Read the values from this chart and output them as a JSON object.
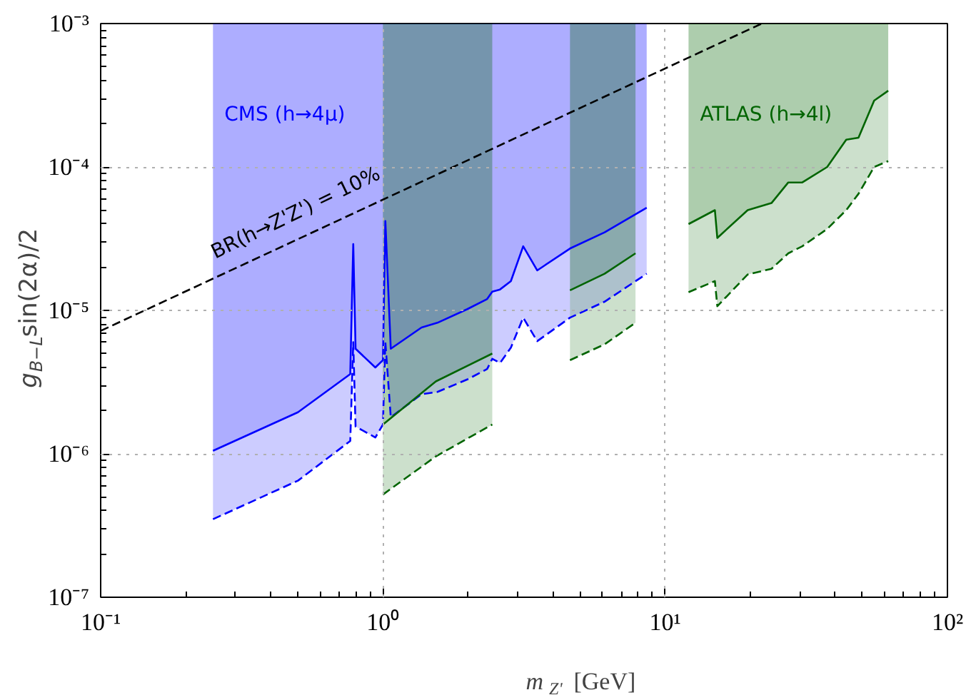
{
  "chart_data": {
    "type": "line",
    "xlabel": "m$_{Z'}$ [GeV]",
    "ylabel": "g$_{B−L}$sin(2α)/2",
    "log": "xy",
    "xlim": [
      0.1,
      100
    ],
    "ylim": [
      1e-07,
      0.001
    ],
    "xticks": [
      {
        "value": 0.1,
        "label": "10⁻¹"
      },
      {
        "value": 1,
        "label": "10⁰"
      },
      {
        "value": 10,
        "label": "10¹"
      },
      {
        "value": 100,
        "label": "10²"
      }
    ],
    "yticks": [
      {
        "value": 1e-07,
        "label": "10⁻⁷"
      },
      {
        "value": 1e-06,
        "label": "10⁻⁶"
      },
      {
        "value": 1e-05,
        "label": "10⁻⁵"
      },
      {
        "value": 0.0001,
        "label": "10⁻⁴"
      },
      {
        "value": 0.001,
        "label": "10⁻³"
      }
    ],
    "grid": true,
    "series": [
      {
        "name": "CMS (h→4μ)",
        "color": "#0000ff",
        "line_style": "solid",
        "x": [
          0.25,
          0.5,
          0.766,
          0.785,
          0.8,
          0.94,
          1.0,
          1.02,
          1.066,
          1.37,
          1.56,
          1.99,
          2.34,
          2.44,
          2.6,
          2.84,
          3.14,
          3.52,
          4.6,
          6.1,
          8.6
        ],
        "values": [
          1.05e-06,
          1.95e-06,
          3.6e-06,
          2.9e-05,
          5.4e-06,
          4e-06,
          4.5e-06,
          4.2e-05,
          5.4e-06,
          7.6e-06,
          8.2e-06,
          1.02e-05,
          1.2e-05,
          1.35e-05,
          1.4e-05,
          1.6e-05,
          2.8e-05,
          1.9e-05,
          2.7e-05,
          3.5e-05,
          5.2e-05
        ],
        "lower": [
          1.05e-06,
          1.95e-06,
          3.6e-06,
          2.9e-05,
          5.4e-06,
          4e-06,
          4.5e-06,
          4.2e-05,
          5.4e-06,
          7.6e-06,
          8.2e-06,
          1.02e-05,
          1.2e-05,
          1.35e-05,
          1.4e-05,
          1.6e-05,
          2.8e-05,
          1.9e-05,
          2.7e-05,
          3.5e-05,
          5.2e-05
        ],
        "upper": [
          0.001,
          0.001,
          0.001,
          0.001,
          0.001,
          0.001,
          0.001,
          0.001,
          0.001,
          0.001,
          0.001,
          0.001,
          0.001,
          0.001,
          0.001,
          0.001,
          0.001,
          0.001,
          0.001,
          0.001,
          0.001
        ]
      },
      {
        "color": "#0000ff",
        "line_style": "dashed",
        "x": [
          0.25,
          0.5,
          0.766,
          0.785,
          0.8,
          0.94,
          1.0,
          1.02,
          1.066,
          1.37,
          1.56,
          1.99,
          2.34,
          2.44,
          2.6,
          2.84,
          3.14,
          3.52,
          4.6,
          6.1,
          8.6
        ],
        "values": [
          3.5e-07,
          6.5e-07,
          1.23e-06,
          6e-06,
          1.55e-06,
          1.3e-06,
          1.6e-06,
          6e-06,
          1.8e-06,
          2.6e-06,
          2.7e-06,
          3.3e-06,
          3.9e-06,
          4.6e-06,
          4.3e-06,
          5.5e-06,
          8.9e-06,
          6.1e-06,
          8.9e-06,
          1.15e-05,
          1.8e-05
        ],
        "lower": [
          3.5e-07,
          6.5e-07,
          1.23e-06,
          6e-06,
          1.55e-06,
          1.3e-06,
          1.6e-06,
          6e-06,
          1.8e-06,
          2.6e-06,
          2.7e-06,
          3.3e-06,
          3.9e-06,
          4.6e-06,
          4.3e-06,
          5.5e-06,
          8.9e-06,
          6.1e-06,
          8.9e-06,
          1.15e-05,
          1.8e-05
        ],
        "upper": [
          1.05e-06,
          1.95e-06,
          3.6e-06,
          2.9e-05,
          5.4e-06,
          4e-06,
          4.5e-06,
          4.2e-05,
          5.4e-06,
          7.6e-06,
          8.2e-06,
          1.02e-05,
          1.2e-05,
          1.35e-05,
          1.4e-05,
          1.6e-05,
          2.8e-05,
          1.9e-05,
          2.7e-05,
          3.5e-05,
          5.2e-05
        ]
      },
      {
        "name": "ATLAS (h→4l)",
        "color": "#006400",
        "line_style": "solid",
        "x": [
          1.0,
          1.54,
          2.44,
          3.5,
          4.6,
          6.1,
          7.85,
          10,
          12.1,
          15.0,
          15.3,
          19.6,
          23.8,
          27.3,
          30.6,
          37.5,
          43.8,
          48.4,
          55,
          61.7
        ],
        "values": [
          1.6e-06,
          3.2e-06,
          5e-06,
          null,
          1.38e-05,
          1.8e-05,
          2.5e-05,
          null,
          4e-05,
          5e-05,
          3.2e-05,
          5e-05,
          5.6e-05,
          7.8e-05,
          7.8e-05,
          0.0001,
          0.000155,
          0.00016,
          0.00029,
          0.00034
        ],
        "lower": [
          1.6e-06,
          3.2e-06,
          5e-06,
          null,
          1.38e-05,
          1.8e-05,
          2.5e-05,
          null,
          4e-05,
          5e-05,
          3.2e-05,
          5e-05,
          5.6e-05,
          7.8e-05,
          7.8e-05,
          0.0001,
          0.000155,
          0.00016,
          0.00029,
          0.00034
        ],
        "upper": [
          0.001,
          0.001,
          0.001,
          null,
          0.001,
          0.001,
          0.001,
          null,
          0.001,
          0.001,
          0.001,
          0.001,
          0.001,
          0.001,
          0.001,
          0.001,
          0.001,
          0.001,
          0.001,
          0.001
        ]
      },
      {
        "color": "#006400",
        "line_style": "dashed",
        "x": [
          1.0,
          1.54,
          2.44,
          3.5,
          4.6,
          6.1,
          7.85,
          10,
          12.1,
          15.0,
          15.3,
          19.6,
          23.8,
          27.3,
          30.6,
          37.5,
          43.8,
          48.4,
          55,
          61.7
        ],
        "values": [
          5.2e-07,
          9.6e-07,
          1.6e-06,
          null,
          4.5e-06,
          5.8e-06,
          8.2e-06,
          null,
          1.34e-05,
          1.6e-05,
          1.07e-05,
          1.78e-05,
          1.95e-05,
          2.5e-05,
          2.8e-05,
          3.7e-05,
          5e-05,
          6.5e-05,
          0.0001,
          0.00011
        ],
        "lower": [
          5.2e-07,
          9.6e-07,
          1.6e-06,
          null,
          4.5e-06,
          5.8e-06,
          8.2e-06,
          null,
          1.34e-05,
          1.6e-05,
          1.07e-05,
          1.78e-05,
          1.95e-05,
          2.5e-05,
          2.8e-05,
          3.7e-05,
          5e-05,
          6.5e-05,
          0.0001,
          0.00011
        ],
        "upper": [
          1.6e-06,
          3.2e-06,
          5e-06,
          null,
          1.38e-05,
          1.8e-05,
          2.5e-05,
          null,
          4e-05,
          5e-05,
          3.2e-05,
          5e-05,
          5.6e-05,
          7.8e-05,
          7.8e-05,
          0.0001,
          0.000155,
          0.00016,
          0.00029,
          0.00034
        ]
      },
      {
        "color": "#000000",
        "line_style": "dashed",
        "x": [
          0.1,
          22
        ],
        "values": [
          7.2e-06,
          0.001
        ]
      }
    ],
    "annotations": [
      {
        "text": "BR(h→Z'Z') = 10%",
        "x": 0.26,
        "y": 2.1e-05
      }
    ]
  }
}
